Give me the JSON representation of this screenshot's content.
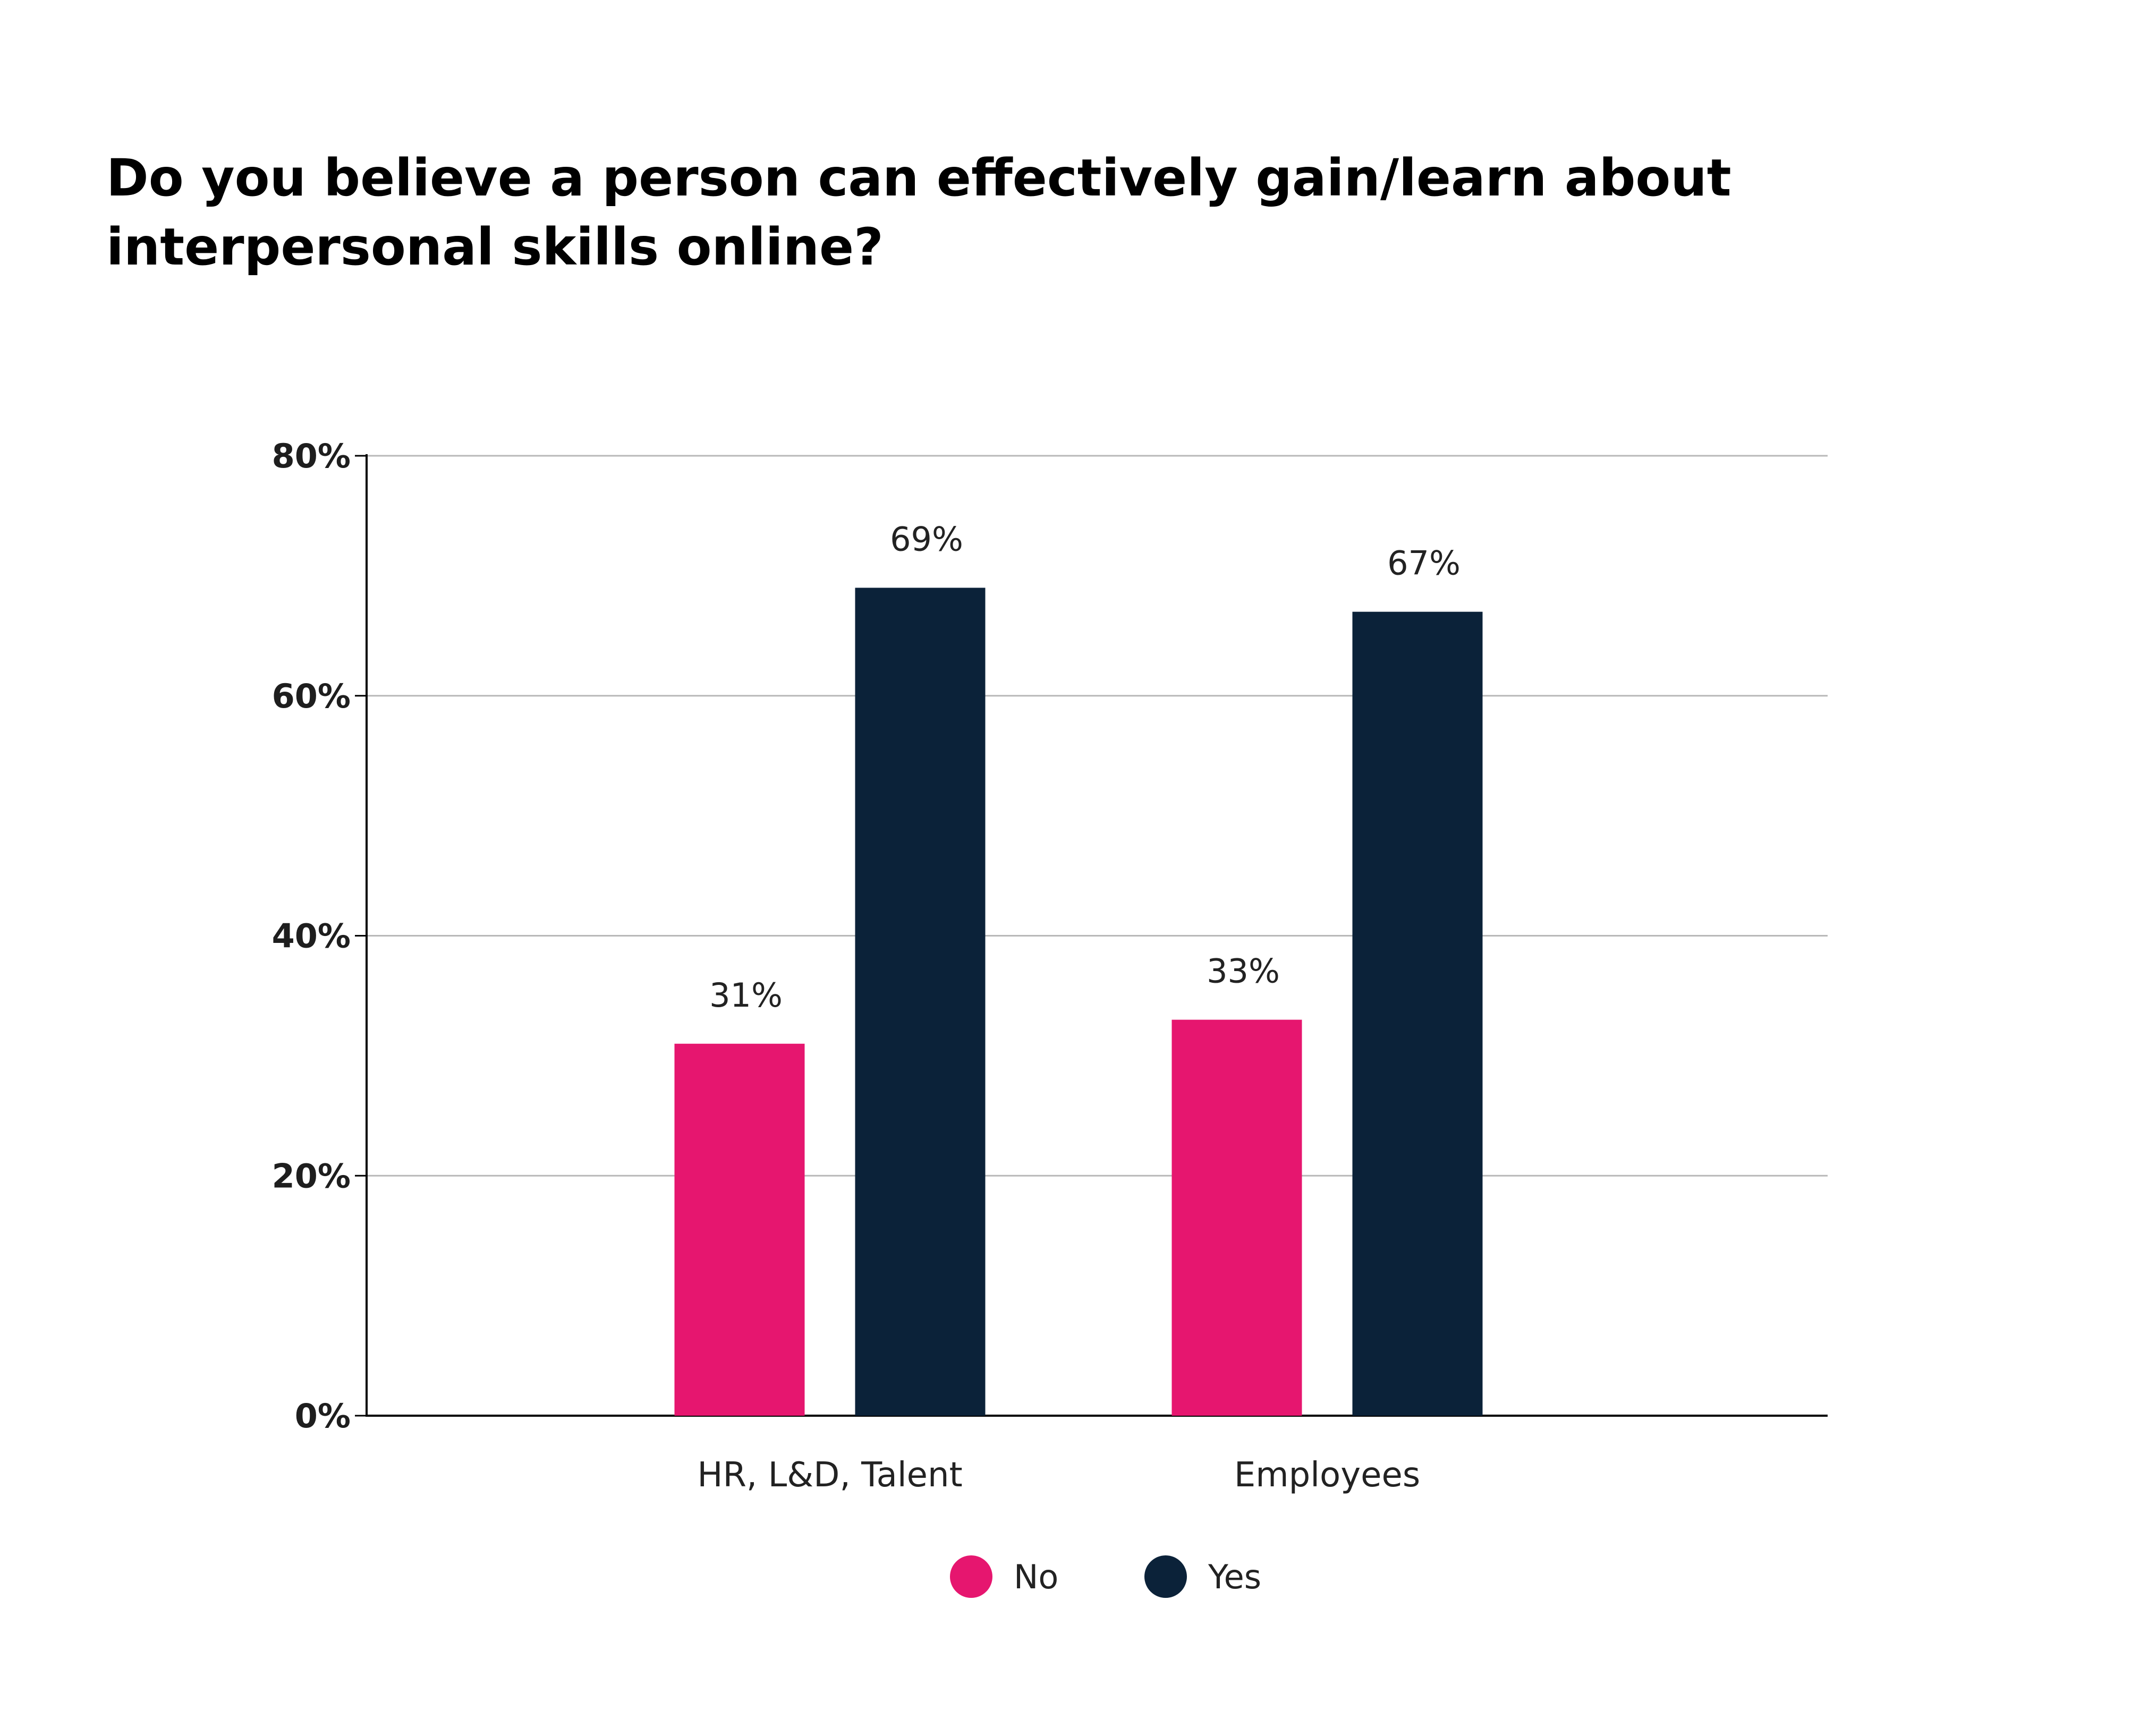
{
  "chart_data": {
    "type": "bar",
    "title": "Do you believe a person can effectively gain/learn about interpersonal skills online?",
    "xlabel": "",
    "ylabel": "",
    "categories": [
      "HR, L&D, Talent",
      "Employees"
    ],
    "series": [
      {
        "name": "No",
        "values": [
          31,
          33
        ],
        "labels": [
          "31%",
          "33%"
        ],
        "color": "#e6166f"
      },
      {
        "name": "Yes",
        "values": [
          69,
          67
        ],
        "labels": [
          "69%",
          "67%"
        ],
        "color": "#0b2239"
      }
    ],
    "ylim": [
      0,
      80
    ],
    "yticks": [
      0,
      20,
      40,
      60,
      80
    ],
    "ytick_labels": [
      "0%",
      "20%",
      "40%",
      "60%",
      "80%"
    ],
    "grid": true,
    "legend": "bottom-center"
  }
}
